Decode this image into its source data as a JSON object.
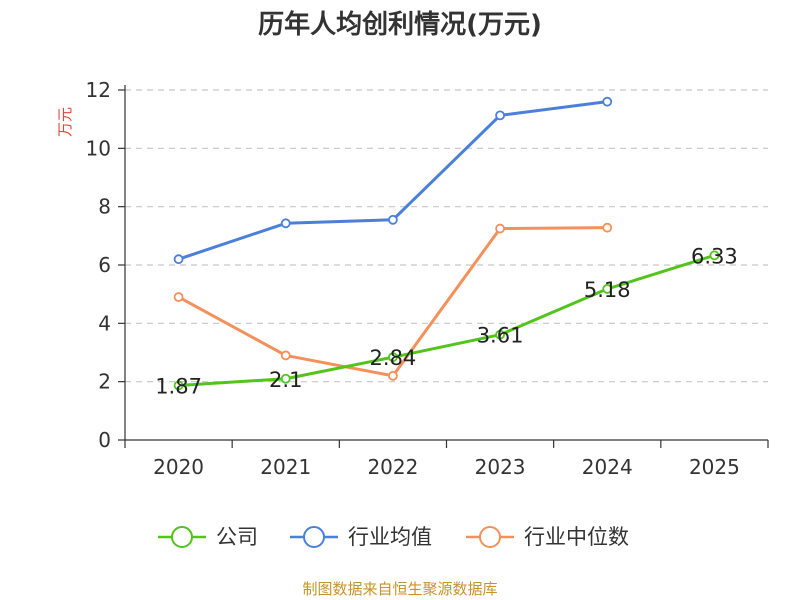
{
  "chart_data": {
    "type": "line",
    "title": "历年人均创利情况(万元)",
    "ylabel": "万元",
    "ylim": [
      0,
      12
    ],
    "yticks": [
      0,
      2,
      4,
      6,
      8,
      10,
      12
    ],
    "categories": [
      "2020",
      "2021",
      "2022",
      "2023",
      "2024",
      "2025"
    ],
    "grid": true,
    "legend_position": "bottom",
    "series": [
      {
        "name": "公司",
        "color": "#52c41a",
        "values": [
          1.87,
          2.1,
          2.84,
          3.61,
          5.18,
          6.33
        ],
        "labels": [
          "1.87",
          "2.1",
          "2.84",
          "3.61",
          "5.18",
          "6.33"
        ]
      },
      {
        "name": "行业均值",
        "color": "#4a7fdc",
        "values": [
          6.2,
          7.43,
          7.55,
          11.13,
          11.6,
          null
        ]
      },
      {
        "name": "行业中位数",
        "color": "#f4905a",
        "values": [
          4.9,
          2.9,
          2.2,
          7.25,
          7.28,
          null
        ]
      }
    ]
  },
  "source": "制图数据来自恒生聚源数据库"
}
